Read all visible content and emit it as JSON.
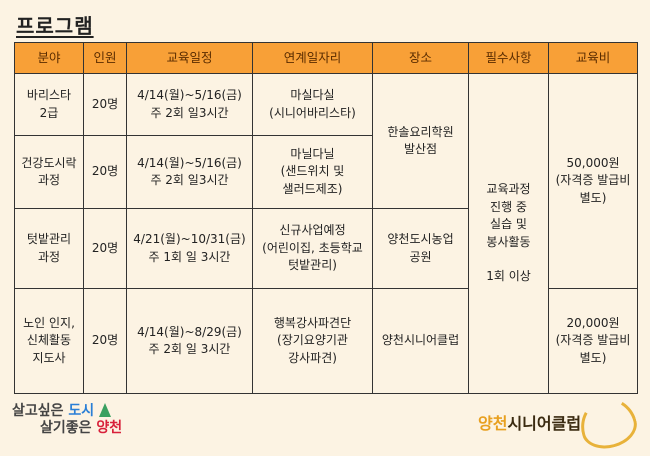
{
  "title": "프로그램",
  "headers": [
    "분야",
    "인원",
    "교육일정",
    "연계일자리",
    "장소",
    "필수사항",
    "교육비"
  ],
  "rows": [
    {
      "field": "바리스타\n2급",
      "count": "20명",
      "schedule": "4/14(월)~5/16(금)\n주 2회 일3시간",
      "job": "마실다실\n(시니어바리스타)"
    },
    {
      "field": "건강도시락\n과정",
      "count": "20명",
      "schedule": "4/14(월)~5/16(금)\n주 2회 일3시간",
      "job": "마닐다닐\n(샌드위치 및\n샐러드제조)"
    },
    {
      "field": "텃밭관리\n과정",
      "count": "20명",
      "schedule": "4/21(월)~10/31(금)\n주 1회 일 3시간",
      "job": "신규사업예정\n(어린이집, 초등학교\n텃밭관리)"
    },
    {
      "field": "노인 인지,\n신체활동\n지도사",
      "count": "20명",
      "schedule": "4/14(월)~8/29(금)\n주 2회 일 3시간",
      "job": "행복강사파견단\n(장기요양기관\n강사파견)"
    }
  ],
  "places": [
    "한솔요리학원\n발산점",
    "양천도시농업\n공원",
    "양천시니어클럽"
  ],
  "required": "교육과정\n진행 중\n실습 및\n봉사활동\n\n1회 이상",
  "fees": [
    "50,000원\n(자격증 발급비\n별도)",
    "20,000원\n(자격증 발급비\n별도)"
  ],
  "logo_left": {
    "line1a": "살고싶은 ",
    "line1b": "도시",
    "line2a": "살기좋은 ",
    "line2b": "양천"
  },
  "logo_right": {
    "a": "양천",
    "b": "시니어클럽"
  }
}
